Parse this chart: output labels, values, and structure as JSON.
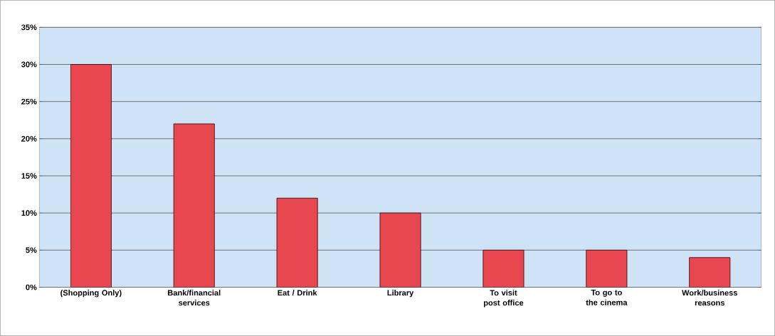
{
  "chart_data": {
    "type": "bar",
    "categories": [
      "(Shopping Only)",
      "Bank/financial services",
      "Eat / Drink",
      "Library",
      "To visit post office",
      "To go to the cinema",
      "Work/business reasons"
    ],
    "values": [
      30,
      22,
      12,
      10,
      5,
      5,
      4
    ],
    "color": "#e8474f",
    "ylim": [
      0,
      35
    ],
    "yticks": [
      {
        "value": 0,
        "label": "0%"
      },
      {
        "value": 5,
        "label": "5%"
      },
      {
        "value": 10,
        "label": "10%"
      },
      {
        "value": 15,
        "label": "15%"
      },
      {
        "value": 20,
        "label": "20%"
      },
      {
        "value": 25,
        "label": "25%"
      },
      {
        "value": 30,
        "label": "30%"
      },
      {
        "value": 35,
        "label": "35%"
      }
    ],
    "grid": "y"
  }
}
